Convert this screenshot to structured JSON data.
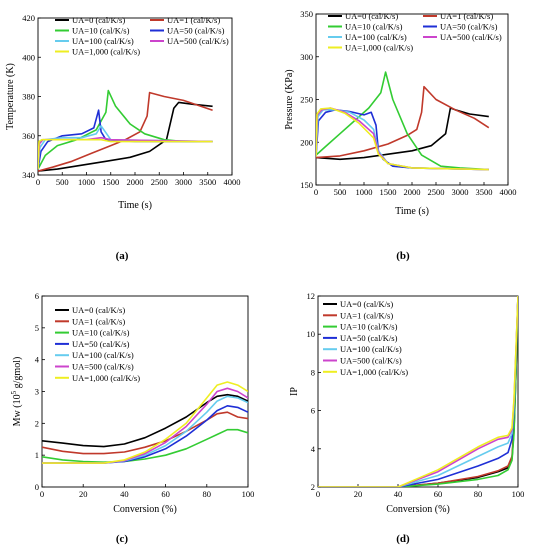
{
  "chart_data": [
    {
      "panel": "(a)",
      "type": "line",
      "xlabel": "Time (s)",
      "ylabel": "Temperature (K)",
      "xlim": [
        0,
        4000
      ],
      "ylim": [
        340,
        420
      ],
      "xticks": [
        0,
        500,
        1000,
        1500,
        2000,
        2500,
        3000,
        3500,
        4000
      ],
      "yticks": [
        340,
        360,
        380,
        400,
        420
      ],
      "legend_loc": "top",
      "series": [
        {
          "name": "UA=0 (cal/K/s)",
          "color": "#000000",
          "x": [
            0,
            400,
            900,
            1400,
            1900,
            2300,
            2650,
            2800,
            2900,
            3200,
            3600
          ],
          "y": [
            342,
            343,
            345,
            347,
            349,
            352,
            358,
            374,
            377,
            376,
            375
          ]
        },
        {
          "name": "UA=1 (cal/K/s)",
          "color": "#c0392b",
          "x": [
            0,
            300,
            700,
            1100,
            1500,
            1800,
            2100,
            2250,
            2300,
            2600,
            3000,
            3600
          ],
          "y": [
            342,
            344,
            347,
            351,
            355,
            358,
            362,
            370,
            382,
            380,
            378,
            373
          ]
        },
        {
          "name": "UA=10 (cal/K/s)",
          "color": "#33cc33",
          "x": [
            0,
            150,
            400,
            800,
            1200,
            1400,
            1450,
            1600,
            1900,
            2200,
            2600,
            3000,
            3600
          ],
          "y": [
            343,
            350,
            355,
            358,
            363,
            372,
            383,
            375,
            366,
            361,
            358,
            357,
            357
          ]
        },
        {
          "name": "UA=50 (cal/K/s)",
          "color": "#1f2fd6",
          "x": [
            0,
            60,
            200,
            500,
            900,
            1150,
            1250,
            1300,
            1400,
            2000,
            3600
          ],
          "y": [
            343,
            352,
            357,
            360,
            361,
            364,
            373,
            362,
            358,
            357,
            357
          ]
        },
        {
          "name": "UA=100 (cal/K/s)",
          "color": "#66ccee",
          "x": [
            0,
            40,
            150,
            500,
            900,
            1200,
            1300,
            1500,
            3600
          ],
          "y": [
            343,
            354,
            358,
            359,
            359,
            361,
            365,
            358,
            357
          ]
        },
        {
          "name": "UA=500 (cal/K/s)",
          "color": "#cc44cc",
          "x": [
            0,
            30,
            100,
            400,
            1000,
            1300,
            1500,
            3600
          ],
          "y": [
            343,
            356,
            358,
            358,
            358,
            359,
            358,
            357
          ]
        },
        {
          "name": "UA=1,000 (cal/K/s)",
          "color": "#eeee22",
          "x": [
            0,
            20,
            80,
            300,
            1000,
            1300,
            1500,
            3600
          ],
          "y": [
            343,
            357,
            358,
            358,
            358,
            358,
            357,
            357
          ]
        }
      ]
    },
    {
      "panel": "(b)",
      "type": "line",
      "xlabel": "Time (s)",
      "ylabel": "Pressure (KPa)",
      "xlim": [
        0,
        4000
      ],
      "ylim": [
        150,
        350
      ],
      "xticks": [
        0,
        500,
        1000,
        1500,
        2000,
        2500,
        3000,
        3500,
        4000
      ],
      "yticks": [
        150,
        200,
        250,
        300,
        350
      ],
      "legend_loc": "top",
      "series": [
        {
          "name": "UA=0 (cal/K/s)",
          "color": "#000000",
          "x": [
            0,
            500,
            1000,
            1500,
            2000,
            2400,
            2700,
            2800,
            2900,
            3200,
            3600
          ],
          "y": [
            182,
            180,
            182,
            186,
            190,
            196,
            210,
            240,
            238,
            233,
            230
          ]
        },
        {
          "name": "UA=1 (cal/K/s)",
          "color": "#c0392b",
          "x": [
            0,
            500,
            1000,
            1500,
            1900,
            2100,
            2200,
            2250,
            2500,
            2900,
            3300,
            3600
          ],
          "y": [
            182,
            184,
            190,
            198,
            208,
            215,
            235,
            265,
            250,
            238,
            228,
            217
          ]
        },
        {
          "name": "UA=10 (cal/K/s)",
          "color": "#33cc33",
          "x": [
            0,
            200,
            500,
            800,
            1100,
            1350,
            1450,
            1600,
            1900,
            2200,
            2600,
            3000,
            3600
          ],
          "y": [
            185,
            195,
            210,
            225,
            240,
            258,
            282,
            250,
            210,
            185,
            172,
            170,
            168
          ]
        },
        {
          "name": "UA=50 (cal/K/s)",
          "color": "#1f2fd6",
          "x": [
            0,
            50,
            200,
            400,
            700,
            1000,
            1150,
            1250,
            1300,
            1400,
            1600,
            2000,
            3600
          ],
          "y": [
            183,
            225,
            235,
            238,
            236,
            232,
            235,
            220,
            190,
            180,
            172,
            170,
            168
          ]
        },
        {
          "name": "UA=100 (cal/K/s)",
          "color": "#66ccee",
          "x": [
            0,
            40,
            150,
            400,
            700,
            1000,
            1200,
            1300,
            1500,
            2000,
            3600
          ],
          "y": [
            183,
            230,
            238,
            238,
            235,
            226,
            215,
            190,
            175,
            170,
            168
          ]
        },
        {
          "name": "UA=500 (cal/K/s)",
          "color": "#cc44cc",
          "x": [
            0,
            30,
            120,
            300,
            600,
            900,
            1200,
            1300,
            1500,
            2000,
            3600
          ],
          "y": [
            183,
            232,
            238,
            240,
            235,
            225,
            210,
            188,
            175,
            170,
            168
          ]
        },
        {
          "name": "UA=1,000 (cal/K/s)",
          "color": "#eeee22",
          "x": [
            0,
            20,
            100,
            300,
            600,
            900,
            1200,
            1300,
            1500,
            2000,
            3600
          ],
          "y": [
            183,
            233,
            239,
            240,
            234,
            222,
            205,
            186,
            175,
            170,
            168
          ]
        }
      ]
    },
    {
      "panel": "(c)",
      "type": "line",
      "xlabel": "Conversion (%)",
      "ylabel": "Mw (10",
      "ylabel_sup": "5",
      "ylabel_tail": " g/gmol)",
      "xlim": [
        0,
        100
      ],
      "ylim": [
        0,
        6
      ],
      "xticks": [
        0,
        20,
        40,
        60,
        80,
        100
      ],
      "yticks": [
        0,
        1,
        2,
        3,
        4,
        5,
        6
      ],
      "legend_loc": "top-left",
      "series": [
        {
          "name": "UA=0 (cal/K/s)",
          "color": "#000000",
          "x": [
            0,
            10,
            20,
            30,
            40,
            50,
            60,
            70,
            80,
            85,
            90,
            95,
            100
          ],
          "y": [
            1.45,
            1.38,
            1.3,
            1.27,
            1.35,
            1.55,
            1.85,
            2.2,
            2.65,
            2.85,
            2.9,
            2.85,
            2.7
          ]
        },
        {
          "name": "UA=1 (cal/K/s)",
          "color": "#c0392b",
          "x": [
            0,
            10,
            20,
            30,
            40,
            50,
            60,
            70,
            80,
            85,
            90,
            95,
            100
          ],
          "y": [
            1.25,
            1.12,
            1.05,
            1.05,
            1.1,
            1.25,
            1.45,
            1.75,
            2.1,
            2.3,
            2.35,
            2.2,
            2.15
          ]
        },
        {
          "name": "UA=10 (cal/K/s)",
          "color": "#33cc33",
          "x": [
            0,
            10,
            20,
            30,
            40,
            50,
            60,
            70,
            80,
            85,
            90,
            95,
            100
          ],
          "y": [
            0.95,
            0.85,
            0.8,
            0.78,
            0.8,
            0.88,
            1.0,
            1.2,
            1.5,
            1.65,
            1.8,
            1.8,
            1.7
          ]
        },
        {
          "name": "UA=50 (cal/K/s)",
          "color": "#1f2fd6",
          "x": [
            0,
            10,
            20,
            30,
            40,
            50,
            60,
            70,
            80,
            85,
            90,
            95,
            100
          ],
          "y": [
            0.75,
            0.75,
            0.75,
            0.75,
            0.8,
            0.95,
            1.2,
            1.6,
            2.1,
            2.4,
            2.55,
            2.5,
            2.35
          ]
        },
        {
          "name": "UA=100 (cal/K/s)",
          "color": "#66ccee",
          "x": [
            0,
            10,
            20,
            30,
            40,
            50,
            60,
            70,
            80,
            85,
            90,
            95,
            100
          ],
          "y": [
            0.75,
            0.75,
            0.75,
            0.75,
            0.82,
            1.0,
            1.3,
            1.75,
            2.35,
            2.7,
            2.85,
            2.8,
            2.65
          ]
        },
        {
          "name": "UA=500 (cal/K/s)",
          "color": "#cc44cc",
          "x": [
            0,
            10,
            20,
            30,
            40,
            50,
            60,
            70,
            80,
            85,
            90,
            95,
            100
          ],
          "y": [
            0.75,
            0.75,
            0.75,
            0.75,
            0.83,
            1.05,
            1.4,
            1.9,
            2.6,
            3.0,
            3.1,
            3.0,
            2.8
          ]
        },
        {
          "name": "UA=1,000 (cal/K/s)",
          "color": "#eeee22",
          "x": [
            0,
            10,
            20,
            30,
            40,
            50,
            60,
            70,
            80,
            85,
            90,
            95,
            100
          ],
          "y": [
            0.75,
            0.75,
            0.75,
            0.75,
            0.85,
            1.1,
            1.5,
            2.0,
            2.8,
            3.2,
            3.3,
            3.2,
            3.0
          ]
        }
      ]
    },
    {
      "panel": "(d)",
      "type": "line",
      "xlabel": "Conversion (%)",
      "ylabel": "IP",
      "xlim": [
        0,
        100
      ],
      "ylim": [
        2,
        12
      ],
      "xticks": [
        0,
        20,
        40,
        60,
        80,
        100
      ],
      "yticks": [
        2,
        4,
        6,
        8,
        10,
        12
      ],
      "legend_loc": "top-left",
      "series": [
        {
          "name": "UA=0 (cal/K/s)",
          "color": "#000000",
          "x": [
            0,
            20,
            40,
            60,
            80,
            90,
            95,
            97,
            98,
            99,
            100
          ],
          "y": [
            2.0,
            2.0,
            2.0,
            2.2,
            2.5,
            2.8,
            3.0,
            3.5,
            5.0,
            8.0,
            12.0
          ]
        },
        {
          "name": "UA=1 (cal/K/s)",
          "color": "#c0392b",
          "x": [
            0,
            20,
            40,
            60,
            80,
            90,
            95,
            97,
            98,
            99,
            100
          ],
          "y": [
            2.0,
            2.0,
            2.0,
            2.2,
            2.55,
            2.85,
            3.1,
            3.6,
            5.2,
            8.5,
            12.0
          ]
        },
        {
          "name": "UA=10 (cal/K/s)",
          "color": "#33cc33",
          "x": [
            0,
            20,
            40,
            60,
            80,
            90,
            95,
            97,
            98,
            99,
            100
          ],
          "y": [
            2.0,
            2.0,
            2.0,
            2.15,
            2.4,
            2.6,
            2.9,
            3.4,
            4.8,
            8.0,
            12.0
          ]
        },
        {
          "name": "UA=50 (cal/K/s)",
          "color": "#1f2fd6",
          "x": [
            0,
            20,
            40,
            60,
            80,
            90,
            95,
            97,
            98,
            99,
            100
          ],
          "y": [
            2.0,
            2.0,
            2.0,
            2.4,
            3.1,
            3.5,
            3.8,
            4.5,
            6.0,
            9.0,
            12.0
          ]
        },
        {
          "name": "UA=100 (cal/K/s)",
          "color": "#66ccee",
          "x": [
            0,
            20,
            40,
            60,
            80,
            90,
            95,
            97,
            98,
            99,
            100
          ],
          "y": [
            2.0,
            2.0,
            2.0,
            2.6,
            3.6,
            4.1,
            4.3,
            4.8,
            6.2,
            9.0,
            12.0
          ]
        },
        {
          "name": "UA=500 (cal/K/s)",
          "color": "#cc44cc",
          "x": [
            0,
            20,
            40,
            60,
            80,
            90,
            95,
            97,
            98,
            99,
            100
          ],
          "y": [
            2.0,
            2.0,
            2.0,
            2.8,
            4.0,
            4.5,
            4.6,
            5.0,
            6.5,
            9.2,
            12.0
          ]
        },
        {
          "name": "UA=1,000 (cal/K/s)",
          "color": "#eeee22",
          "x": [
            0,
            20,
            40,
            60,
            80,
            90,
            95,
            97,
            98,
            99,
            100
          ],
          "y": [
            2.0,
            2.0,
            2.0,
            2.9,
            4.1,
            4.6,
            4.7,
            5.1,
            6.6,
            9.3,
            12.0
          ]
        }
      ]
    }
  ]
}
